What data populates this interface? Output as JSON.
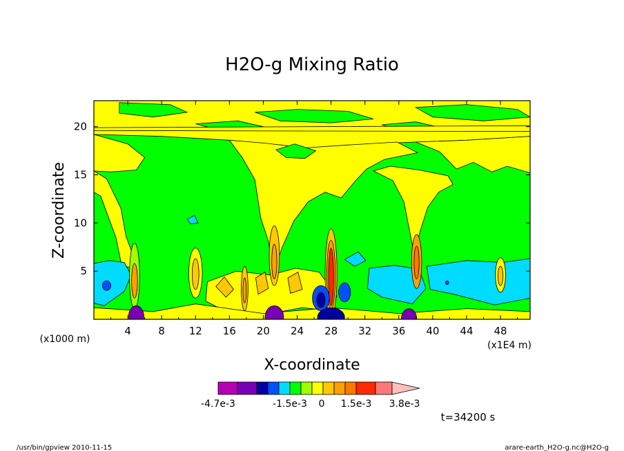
{
  "chart_data": {
    "type": "heatmap",
    "title": "H2O-g Mixing Ratio",
    "xlabel": "X-coordinate",
    "ylabel": "Z-coordinate",
    "x_unit_left": "(x1000 m)",
    "x_unit_right": "(x1E4 m)",
    "xlim": [
      0,
      51.5
    ],
    "ylim": [
      0,
      22.7
    ],
    "x_ticks": [
      "4",
      "8",
      "12",
      "16",
      "20",
      "24",
      "28",
      "32",
      "36",
      "40",
      "44",
      "48"
    ],
    "x_tick_values": [
      4,
      8,
      12,
      16,
      20,
      24,
      28,
      32,
      36,
      40,
      44,
      48
    ],
    "y_ticks": [
      "5",
      "10",
      "15",
      "20"
    ],
    "y_tick_values": [
      5,
      10,
      15,
      20
    ],
    "colorbar": {
      "labels": [
        "-4.7e-3",
        "-1.5e-3",
        "0",
        "1.5e-3",
        "3.8e-3"
      ],
      "colors": [
        "#b400b4",
        "#7800b4",
        "#0000a0",
        "#0050ff",
        "#00dcff",
        "#00ff00",
        "#a0ff00",
        "#ffff00",
        "#ffc800",
        "#ffa000",
        "#ff7800",
        "#ff2800",
        "#ff7878",
        "#ffbebe"
      ]
    },
    "palette": {
      "blue": "#00dcff",
      "green": "#00ff00",
      "lime": "#a0ff00",
      "yellow": "#ffff00",
      "orange": "#ffc800",
      "dark_orange": "#ffa000",
      "red": "#ff2800",
      "navy": "#0000a0",
      "purple": "#7800b4"
    },
    "annotation": "t=34200 s"
  },
  "footer": {
    "left": "/usr/bin/gpview  2010-11-15",
    "right": "arare-earth_H2O-g.nc@H2O-g"
  }
}
